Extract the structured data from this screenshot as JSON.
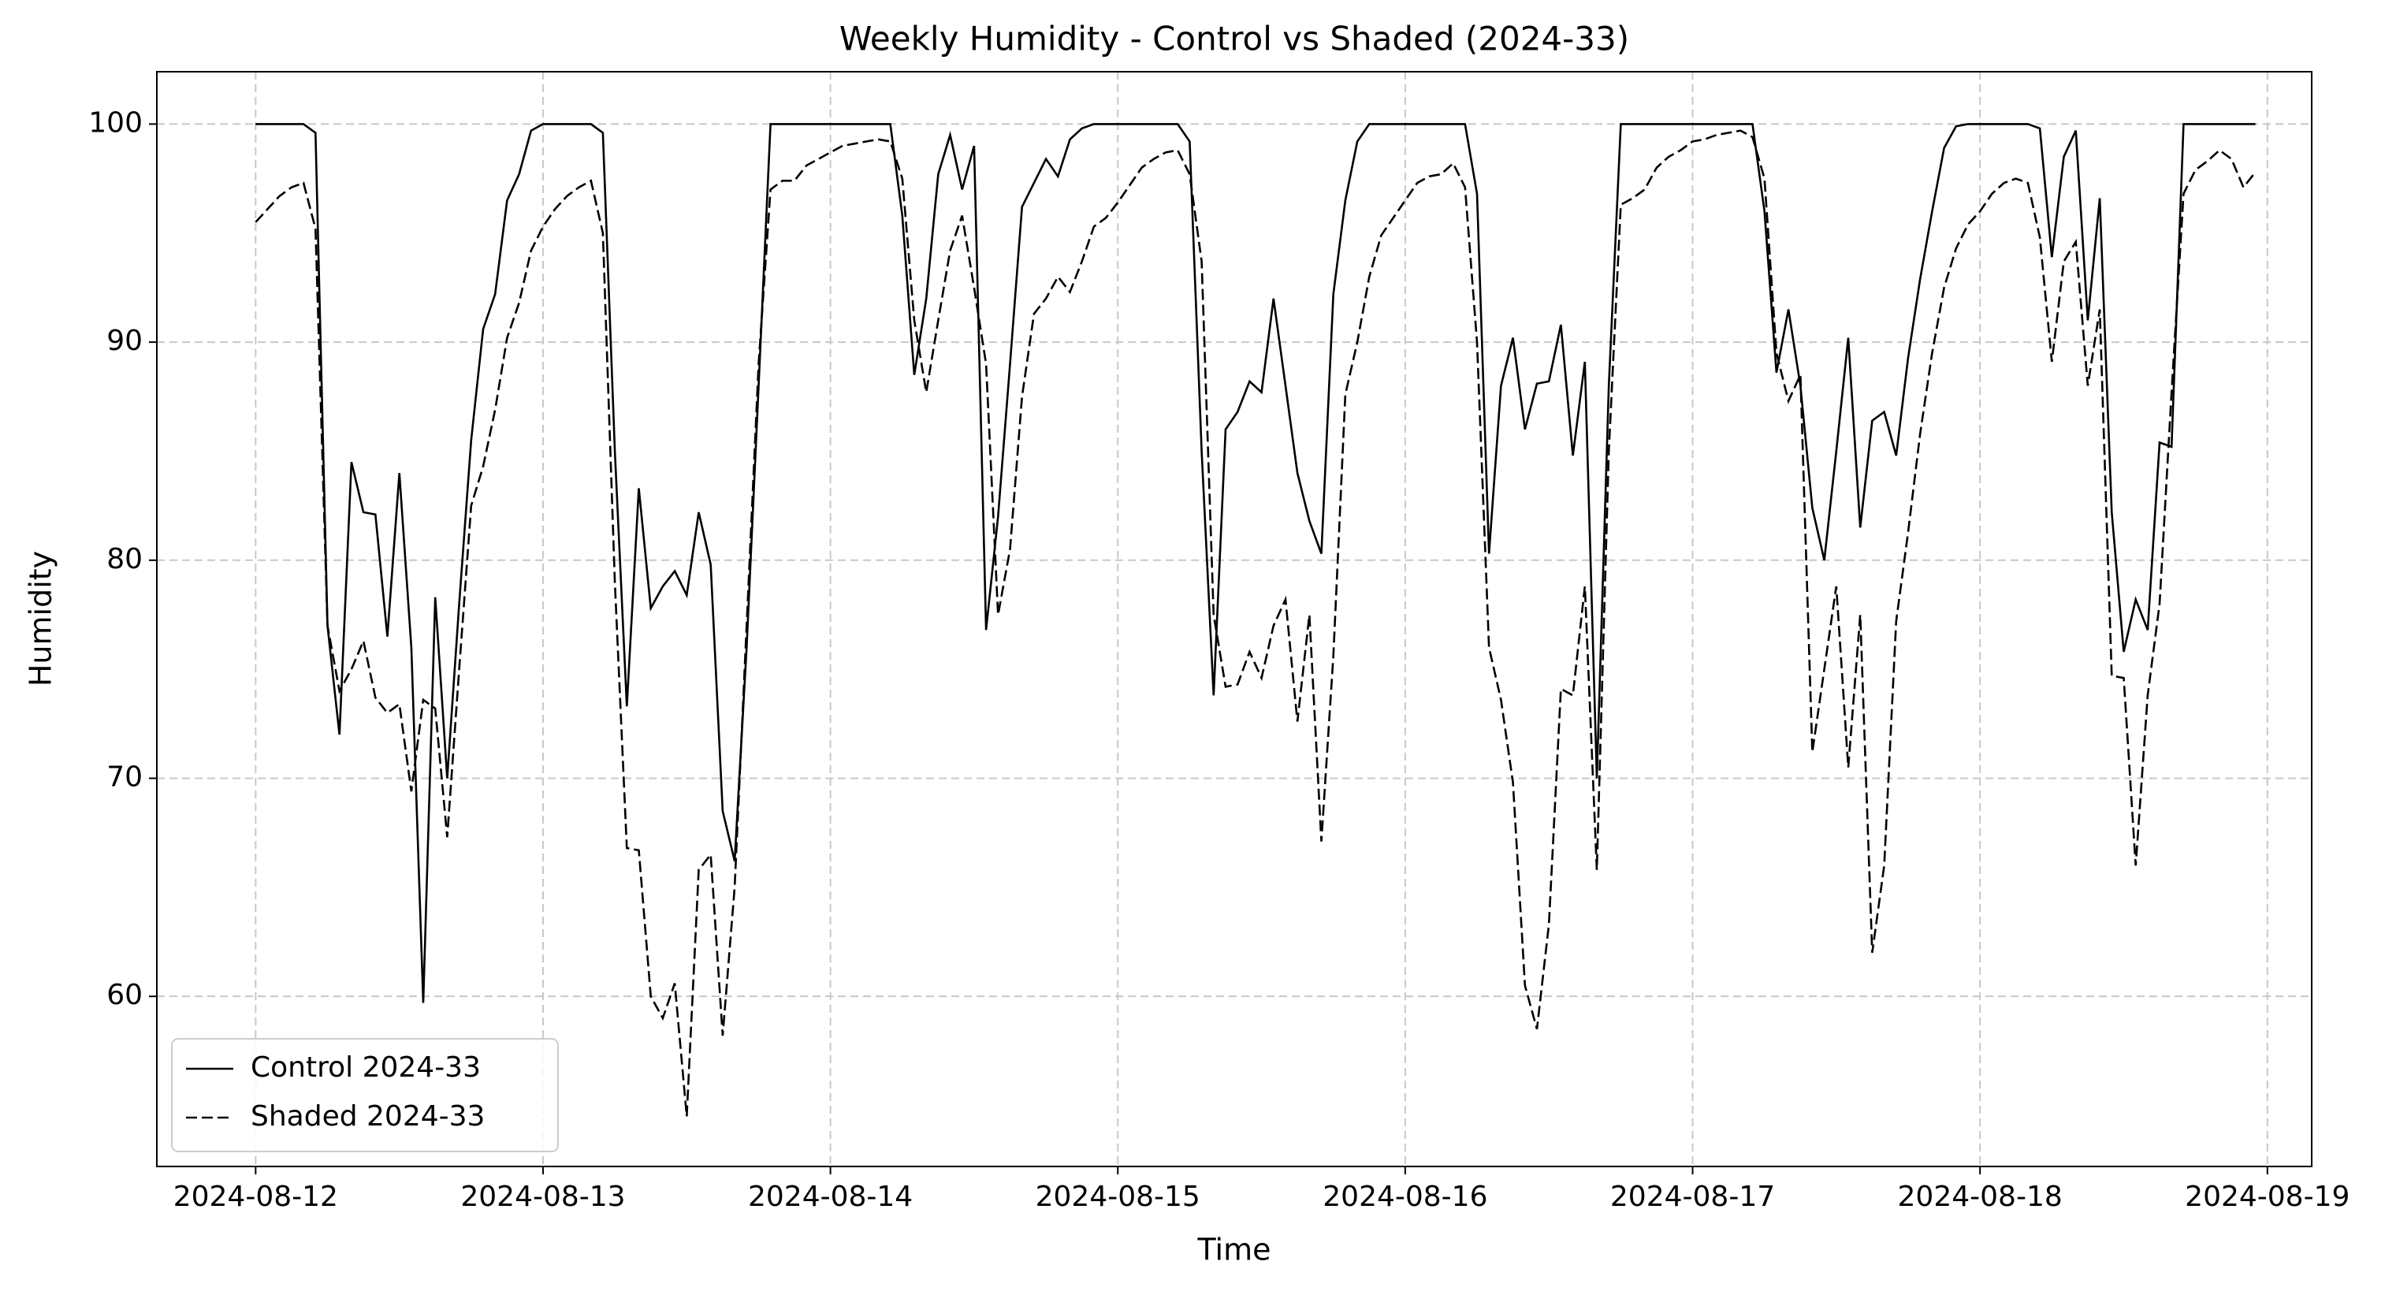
{
  "chart_data": {
    "type": "line",
    "title": "Weekly Humidity - Control vs Shaded (2024-33)",
    "xlabel": "Time",
    "ylabel": "Humidity",
    "x": [
      0,
      1,
      2,
      3,
      4,
      5,
      6,
      7,
      8,
      9,
      10,
      11,
      12,
      13,
      14,
      15,
      16,
      17,
      18,
      19,
      20,
      21,
      22,
      23,
      24,
      25,
      26,
      27,
      28,
      29,
      30,
      31,
      32,
      33,
      34,
      35,
      36,
      37,
      38,
      39,
      40,
      41,
      42,
      43,
      44,
      45,
      46,
      47,
      48,
      49,
      50,
      51,
      52,
      53,
      54,
      55,
      56,
      57,
      58,
      59,
      60,
      61,
      62,
      63,
      64,
      65,
      66,
      67,
      68,
      69,
      70,
      71,
      72,
      73,
      74,
      75,
      76,
      77,
      78,
      79,
      80,
      81,
      82,
      83,
      84,
      85,
      86,
      87,
      88,
      89,
      90,
      91,
      92,
      93,
      94,
      95,
      96,
      97,
      98,
      99,
      100,
      101,
      102,
      103,
      104,
      105,
      106,
      107,
      108,
      109,
      110,
      111,
      112,
      113,
      114,
      115,
      116,
      117,
      118,
      119,
      120,
      121,
      122,
      123,
      124,
      125,
      126,
      127,
      128,
      129,
      130,
      131,
      132,
      133,
      134,
      135,
      136,
      137,
      138,
      139,
      140,
      141,
      142,
      143,
      144,
      145,
      146,
      147,
      148,
      149,
      150,
      151,
      152,
      153,
      154,
      155,
      156,
      157,
      158,
      159,
      160,
      161,
      162,
      163,
      164,
      165,
      166,
      167
    ],
    "series": [
      {
        "name": "Control 2024-33",
        "color": "#000000",
        "linestyle": "solid",
        "values": [
          100,
          100,
          100,
          100,
          100,
          99.6,
          77,
          72,
          84.5,
          82.2,
          82.1,
          76.5,
          84,
          76,
          59.7,
          78.3,
          70,
          78,
          85.5,
          90.6,
          92.2,
          96.5,
          97.7,
          99.7,
          100,
          100,
          100,
          100,
          100,
          99.6,
          85,
          73.3,
          83.3,
          77.8,
          78.8,
          79.5,
          78.4,
          82.2,
          79.8,
          68.5,
          66.2,
          76,
          88,
          100,
          100,
          100,
          100,
          100,
          100,
          100,
          100,
          100,
          100,
          100,
          95.8,
          88.5,
          92,
          97.7,
          99.5,
          97,
          99,
          76.8,
          82,
          89,
          96.2,
          97.3,
          98.4,
          97.6,
          99.3,
          99.8,
          100,
          100,
          100,
          100,
          100,
          100,
          100,
          100,
          99.2,
          85,
          73.8,
          86,
          86.8,
          88.2,
          87.7,
          92,
          88,
          84,
          81.8,
          80.3,
          92.2,
          96.5,
          99.2,
          100,
          100,
          100,
          100,
          100,
          100,
          100,
          100,
          100,
          96.8,
          80.3,
          88,
          90.2,
          86,
          88.1,
          88.2,
          90.8,
          84.8,
          89.1,
          70,
          88,
          100,
          100,
          100,
          100,
          100,
          100,
          100,
          100,
          100,
          100,
          100,
          100,
          96,
          88.6,
          91.5,
          88,
          82.4,
          80,
          85,
          90.2,
          81.5,
          86.4,
          86.8,
          84.8,
          89.3,
          92.9,
          96,
          98.9,
          99.9,
          100,
          100,
          100,
          100,
          100,
          100,
          99.8,
          93.9,
          98.5,
          99.7,
          91,
          96.6,
          82.2,
          75.8,
          78.2,
          76.8,
          85.4,
          85.2,
          100,
          100,
          100,
          100,
          100,
          100,
          100
        ]
      },
      {
        "name": "Shaded 2024-33",
        "color": "#000000",
        "linestyle": "dashed",
        "values": [
          95.5,
          96.1,
          96.7,
          97.1,
          97.3,
          95.2,
          77,
          74,
          75,
          76.3,
          73.7,
          73,
          73.4,
          69.4,
          73.6,
          73.2,
          67.3,
          75,
          82.5,
          84.3,
          86.9,
          90.2,
          91.8,
          94.2,
          95.3,
          96.1,
          96.7,
          97.1,
          97.4,
          95,
          79,
          66.8,
          66.7,
          60,
          59,
          60.6,
          54.5,
          65.8,
          66.5,
          58.2,
          65,
          77,
          89,
          97,
          97.4,
          97.4,
          98.1,
          98.4,
          98.7,
          99,
          99.1,
          99.2,
          99.3,
          99.2,
          97.5,
          91,
          87.7,
          91,
          94.2,
          95.8,
          92.5,
          89,
          77.5,
          80.5,
          87.5,
          91.3,
          92,
          93,
          92.3,
          93.7,
          95.3,
          95.7,
          96.4,
          97.2,
          98,
          98.4,
          98.7,
          98.8,
          97.7,
          93.7,
          77.5,
          74.2,
          74.3,
          75.8,
          74.6,
          77,
          78.2,
          72.6,
          77.5,
          67.1,
          75.6,
          87.6,
          90,
          93,
          94.9,
          95.7,
          96.5,
          97.3,
          97.6,
          97.7,
          98.2,
          97.1,
          90,
          76,
          73.6,
          69.8,
          60.5,
          58.5,
          63.3,
          74.1,
          73.8,
          78.8,
          65.8,
          85,
          96.3,
          96.6,
          97,
          98,
          98.5,
          98.8,
          99.2,
          99.3,
          99.5,
          99.6,
          99.7,
          99.4,
          97.5,
          89.5,
          87.3,
          88.5,
          71.2,
          75,
          78.8,
          70.5,
          77.5,
          62,
          66,
          77.2,
          81.3,
          85.8,
          89.5,
          92.5,
          94.3,
          95.4,
          96,
          96.8,
          97.3,
          97.5,
          97.3,
          94.8,
          89.1,
          93.7,
          94.6,
          88,
          91.5,
          74.7,
          74.6,
          66,
          73.8,
          78,
          87.7,
          96.8,
          97.9,
          98.3,
          98.8,
          98.4,
          97.1,
          97.8
        ]
      }
    ],
    "xlim": [
      -8.25,
      171.7
    ],
    "xticks": [
      {
        "value": 0,
        "label": "2024-08-12"
      },
      {
        "value": 24,
        "label": "2024-08-13"
      },
      {
        "value": 48,
        "label": "2024-08-14"
      },
      {
        "value": 72,
        "label": "2024-08-15"
      },
      {
        "value": 96,
        "label": "2024-08-16"
      },
      {
        "value": 120,
        "label": "2024-08-17"
      },
      {
        "value": 144,
        "label": "2024-08-18"
      },
      {
        "value": 168,
        "label": "2024-08-19"
      }
    ],
    "ylim": [
      52.2,
      102.4
    ],
    "yticks": [
      60,
      70,
      80,
      90,
      100
    ],
    "grid": true,
    "legend": "lower left"
  }
}
